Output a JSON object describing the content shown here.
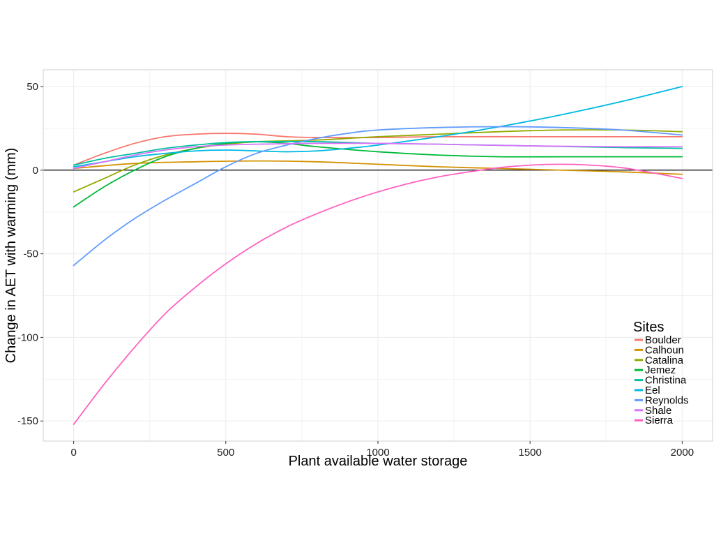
{
  "chart_data": {
    "type": "line",
    "xlabel": "Plant available water storage",
    "ylabel": "Change in AET with warming (mm)",
    "xlim": [
      -100,
      2100
    ],
    "ylim": [
      -162,
      60
    ],
    "x_ticks": [
      0,
      500,
      1000,
      1500,
      2000
    ],
    "y_ticks": [
      50,
      0,
      -50,
      -100,
      -150
    ],
    "grid": true,
    "zero_line": true,
    "legend": {
      "title": "Sites",
      "position": "bottom-right"
    },
    "series": [
      {
        "name": "Boulder",
        "color": "#F8766D",
        "x": [
          0,
          100,
          200,
          300,
          400,
          500,
          600,
          700,
          800,
          1000,
          1200,
          1500,
          1800,
          2000
        ],
        "y": [
          3,
          10,
          16,
          20,
          21.5,
          22,
          21.5,
          20,
          19.5,
          19.5,
          20,
          20,
          20,
          20
        ]
      },
      {
        "name": "Calhoun",
        "color": "#D39200",
        "x": [
          0,
          200,
          400,
          600,
          800,
          1000,
          1200,
          1400,
          1600,
          1800,
          2000
        ],
        "y": [
          1,
          4,
          5,
          5.5,
          5,
          3.5,
          2,
          1,
          0,
          -1,
          -2.5
        ]
      },
      {
        "name": "Catalina",
        "color": "#93AA00",
        "x": [
          0,
          100,
          200,
          300,
          400,
          500,
          600,
          800,
          1000,
          1200,
          1400,
          1600,
          1800,
          2000
        ],
        "y": [
          -13,
          -5,
          3,
          9,
          13,
          15.5,
          17,
          18,
          20,
          21.5,
          23,
          24,
          24,
          23
        ]
      },
      {
        "name": "Jemez",
        "color": "#00BA38",
        "x": [
          0,
          100,
          200,
          300,
          400,
          500,
          600,
          700,
          800,
          1000,
          1200,
          1400,
          1600,
          1800,
          2000
        ],
        "y": [
          -22,
          -10,
          0,
          8,
          13,
          16,
          17,
          16,
          14,
          11,
          9,
          8,
          8,
          8,
          8
        ]
      },
      {
        "name": "Christina",
        "color": "#00C19F",
        "x": [
          0,
          100,
          200,
          300,
          400,
          500,
          600,
          800,
          1000,
          1200,
          1500,
          1800,
          2000
        ],
        "y": [
          3,
          7,
          10,
          13,
          15,
          16.5,
          17,
          17,
          16,
          15.5,
          14.5,
          13.5,
          13
        ]
      },
      {
        "name": "Eel",
        "color": "#00B9E3",
        "x": [
          0,
          100,
          200,
          300,
          400,
          500,
          600,
          700,
          800,
          900,
          1000,
          1200,
          1400,
          1600,
          1800,
          2000
        ],
        "y": [
          2,
          5,
          8,
          10,
          11.5,
          12,
          11.5,
          11,
          11.5,
          13,
          15,
          20,
          26,
          33,
          41,
          50
        ]
      },
      {
        "name": "Reynolds",
        "color": "#619CFF",
        "x": [
          0,
          100,
          200,
          300,
          400,
          500,
          600,
          700,
          800,
          900,
          1000,
          1200,
          1400,
          1600,
          1800,
          2000
        ],
        "y": [
          -57,
          -42,
          -29,
          -18,
          -8,
          2,
          10,
          15,
          19,
          22,
          24,
          25.5,
          26,
          25.5,
          24,
          21
        ]
      },
      {
        "name": "Shale",
        "color": "#DB72FB",
        "x": [
          0,
          100,
          200,
          300,
          400,
          500,
          600,
          800,
          1000,
          1200,
          1500,
          1800,
          2000
        ],
        "y": [
          1,
          5,
          9,
          12,
          14,
          15,
          15.5,
          16,
          16,
          15.5,
          14.5,
          14,
          14
        ]
      },
      {
        "name": "Sierra",
        "color": "#FF61C3",
        "x": [
          0,
          100,
          200,
          300,
          400,
          500,
          600,
          700,
          800,
          900,
          1000,
          1100,
          1200,
          1300,
          1400,
          1500,
          1600,
          1700,
          1800,
          1900,
          2000
        ],
        "y": [
          -152,
          -128,
          -106,
          -86,
          -70,
          -56,
          -44,
          -34,
          -26,
          -19,
          -13,
          -8,
          -4,
          -1,
          1.5,
          3,
          3.5,
          3,
          1.5,
          -1.5,
          -5
        ]
      }
    ]
  }
}
